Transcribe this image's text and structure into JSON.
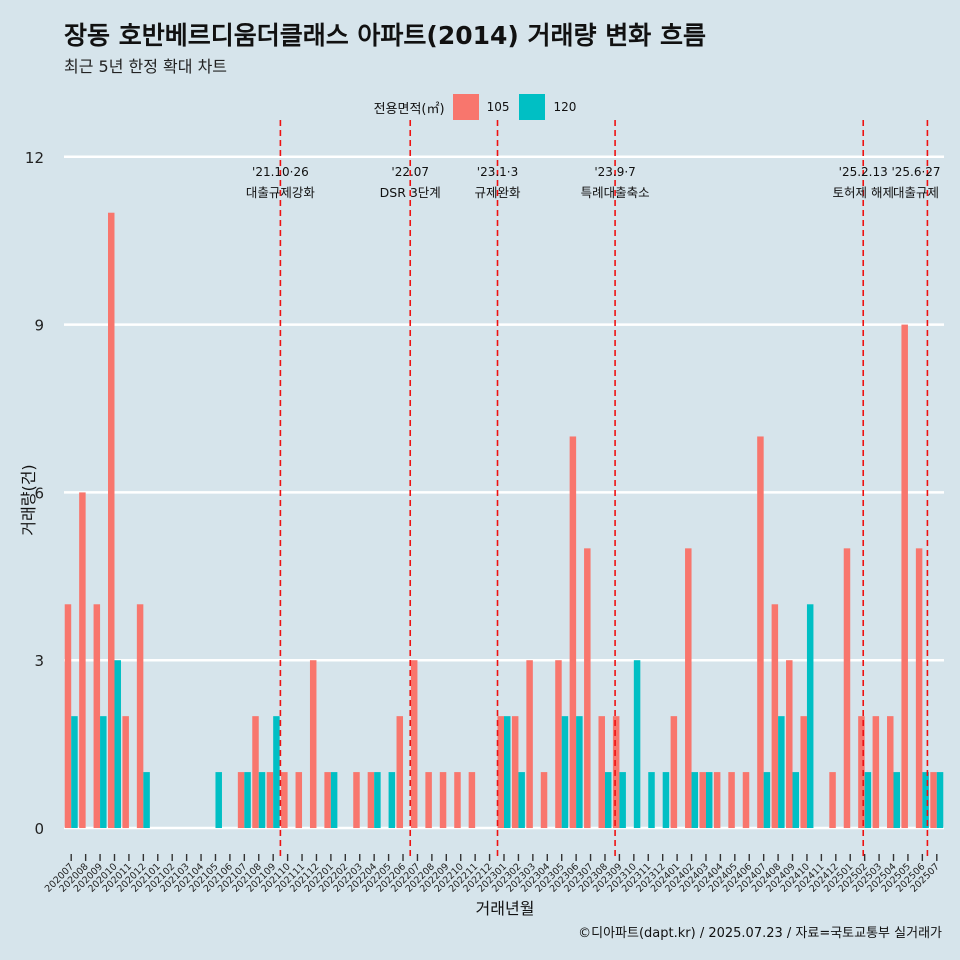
{
  "chart_data": {
    "type": "bar",
    "title": "장동 호반베르디움더클래스 아파트(2014) 거래량 변화 흐름",
    "subtitle": "최근 5년 한정 확대 차트",
    "xlabel": "거래년월",
    "ylabel": "거래량(건)",
    "ylim": [
      -0.5,
      12.3
    ],
    "yticks": [
      0,
      3,
      6,
      9,
      12
    ],
    "legend_title": "전용면적(㎡)",
    "legend_position": "top",
    "caption": "©디아파트(dapt.kr) / 2025.07.23 / 자료=국토교통부 실거래가",
    "categories": [
      "202007",
      "202008",
      "202009",
      "202010",
      "202011",
      "202012",
      "202101",
      "202102",
      "202103",
      "202104",
      "202105",
      "202106",
      "202107",
      "202108",
      "202109",
      "202110",
      "202111",
      "202112",
      "202201",
      "202202",
      "202203",
      "202204",
      "202205",
      "202206",
      "202207",
      "202208",
      "202209",
      "202210",
      "202211",
      "202212",
      "202301",
      "202302",
      "202303",
      "202304",
      "202305",
      "202306",
      "202307",
      "202308",
      "202309",
      "202310",
      "202311",
      "202312",
      "202401",
      "202402",
      "202403",
      "202404",
      "202405",
      "202406",
      "202407",
      "202408",
      "202409",
      "202410",
      "202411",
      "202412",
      "202501",
      "202502",
      "202503",
      "202504",
      "202505",
      "202506",
      "202507"
    ],
    "series": [
      {
        "name": "105",
        "color": "#f8766d",
        "values": [
          4,
          6,
          4,
          11,
          2,
          4,
          0,
          0,
          0,
          0,
          0,
          0,
          1,
          2,
          1,
          1,
          1,
          3,
          1,
          0,
          1,
          1,
          0,
          2,
          3,
          1,
          1,
          1,
          1,
          0,
          2,
          2,
          3,
          1,
          3,
          7,
          5,
          2,
          2,
          0,
          0,
          0,
          2,
          5,
          1,
          1,
          1,
          1,
          7,
          4,
          3,
          2,
          0,
          1,
          5,
          2,
          2,
          2,
          9,
          5,
          1
        ]
      },
      {
        "name": "120",
        "color": "#00bfc4",
        "values": [
          2,
          0,
          2,
          3,
          0,
          1,
          0,
          0,
          0,
          0,
          1,
          0,
          1,
          1,
          2,
          0,
          0,
          0,
          1,
          0,
          0,
          1,
          1,
          0,
          0,
          0,
          0,
          0,
          0,
          0,
          2,
          1,
          0,
          0,
          2,
          2,
          0,
          1,
          1,
          3,
          1,
          1,
          0,
          1,
          1,
          0,
          0,
          0,
          1,
          2,
          1,
          4,
          0,
          0,
          0,
          1,
          0,
          1,
          0,
          1,
          1
        ]
      }
    ],
    "annotations": [
      {
        "date_label": "'21.10·26",
        "text": "대출규제강화",
        "x_month": "202110",
        "position": 0.0
      },
      {
        "date_label": "'22.07",
        "text": "DSR 3단계",
        "x_month": "202207",
        "position": 0.0
      },
      {
        "date_label": "'23.1·3",
        "text": "규제완화",
        "x_month": "202301",
        "position": 0.05
      },
      {
        "date_label": "'23.9·7",
        "text": "특례대출축소",
        "x_month": "202309",
        "position": 0.2
      },
      {
        "date_label": "'25.2.13",
        "text": "토허제 해제",
        "x_month": "202502",
        "position": 0.4
      },
      {
        "date_label": "'25.6·27",
        "text": "대출규제",
        "x_month": "202506",
        "position": 0.85
      }
    ]
  }
}
